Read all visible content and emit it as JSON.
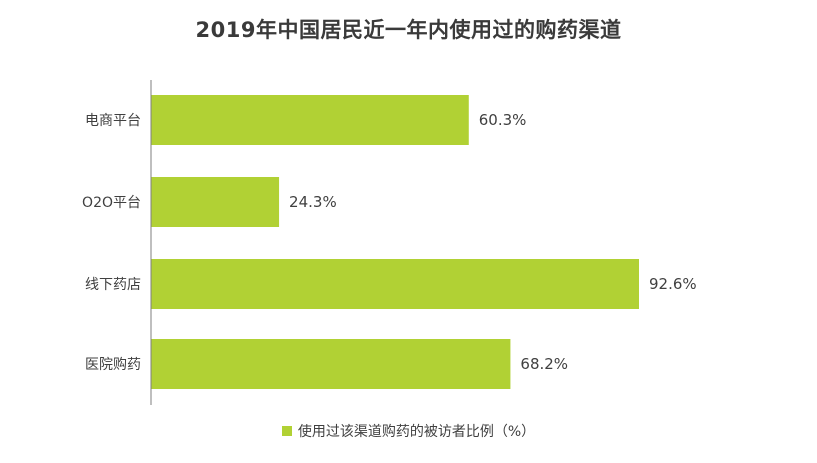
{
  "chart_data": {
    "type": "bar",
    "orientation": "horizontal",
    "title": "2019年中国居民近一年内使用过的购药渠道",
    "categories": [
      "电商平台",
      "O2O平台",
      "线下药店",
      "医院购药"
    ],
    "series": [
      {
        "name": "使用过该渠道购药的被访者比例（%）",
        "values": [
          60.3,
          24.3,
          92.6,
          68.2
        ]
      }
    ],
    "value_labels": [
      "60.3%",
      "24.3%",
      "92.6%",
      "68.2%"
    ],
    "xlim": [
      0,
      100
    ],
    "grid": false,
    "legend_position": "bottom-center",
    "bar_color": "#b1d134",
    "axis_color": "#7f7f7f"
  }
}
